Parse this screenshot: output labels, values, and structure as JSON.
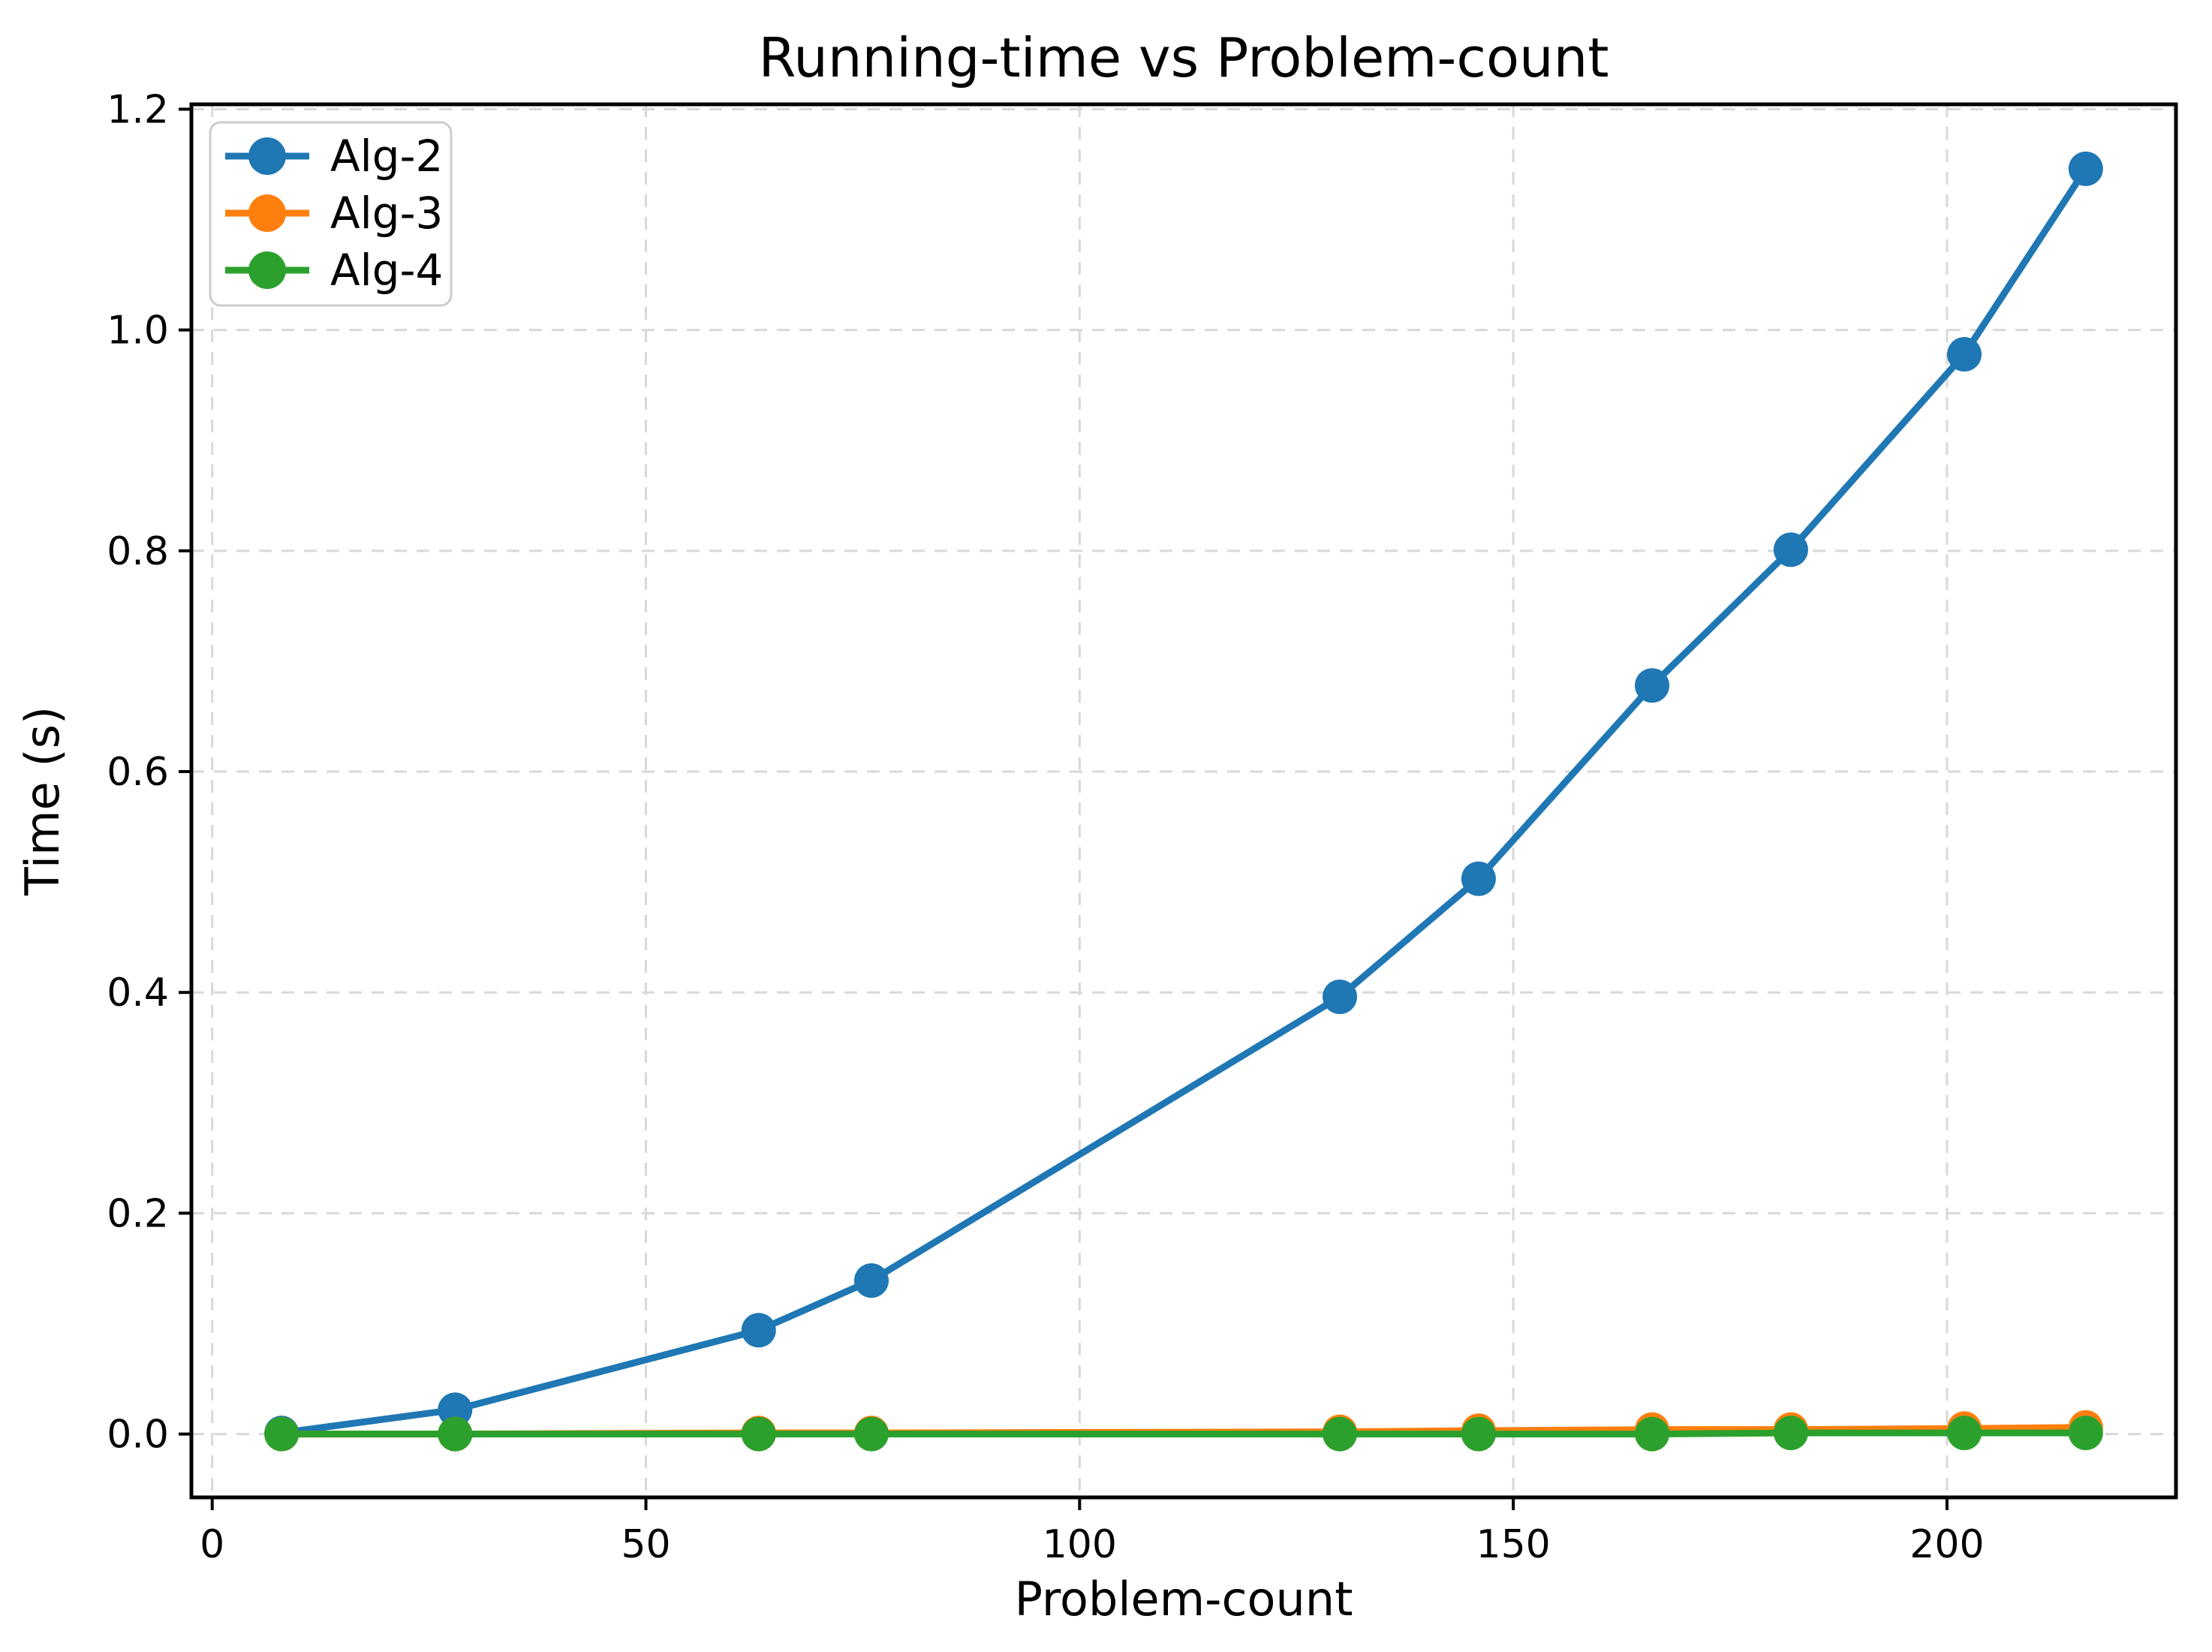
{
  "chart_data": {
    "type": "line",
    "title": "Running-time vs Problem-count",
    "xlabel": "Problem-count",
    "ylabel": "Time (s)",
    "x": [
      8,
      28,
      63,
      76,
      130,
      146,
      166,
      182,
      202,
      216
    ],
    "series": [
      {
        "name": "Alg-2",
        "color": "#1f77b4",
        "values": [
          0.001,
          0.022,
          0.094,
          0.139,
          0.396,
          0.503,
          0.678,
          0.801,
          0.978,
          1.146
        ]
      },
      {
        "name": "Alg-3",
        "color": "#ff7f0e",
        "values": [
          0.0,
          0.0,
          0.001,
          0.001,
          0.002,
          0.003,
          0.004,
          0.004,
          0.005,
          0.006
        ]
      },
      {
        "name": "Alg-4",
        "color": "#2ca02c",
        "values": [
          0.0,
          0.0,
          0.0,
          0.0,
          0.0,
          0.0,
          0.0,
          0.001,
          0.001,
          0.001
        ]
      }
    ],
    "xticks": [
      0,
      50,
      100,
      150,
      200
    ],
    "yticks": [
      0.0,
      0.2,
      0.4,
      0.6,
      0.8,
      1.0,
      1.2
    ],
    "xlim": [
      -2.4,
      226.4
    ],
    "ylim": [
      -0.0574,
      1.2044
    ],
    "grid": true,
    "grid_color": "#d8d8d8",
    "spine_color": "#000000",
    "legend_position": "upper-left"
  }
}
